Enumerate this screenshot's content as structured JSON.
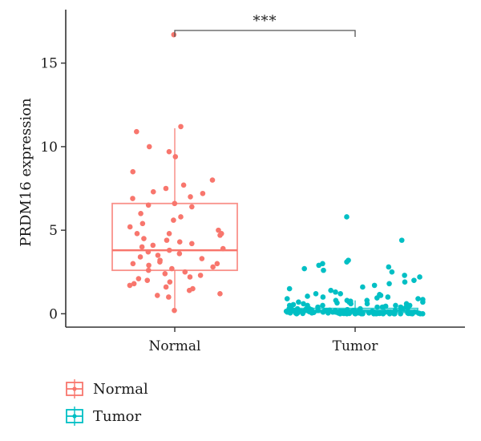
{
  "chart_data": {
    "type": "box",
    "ylabel": "PRDM16 expression",
    "xlabel": "",
    "categories": [
      "Normal",
      "Tumor"
    ],
    "ylim": [
      -0.8,
      18.2
    ],
    "yticks": [
      0,
      5,
      10,
      15
    ],
    "ytick_labels": [
      "0",
      "5",
      "10",
      "15"
    ],
    "significance": {
      "groups": [
        "Normal",
        "Tumor"
      ],
      "label": "***"
    },
    "legend": {
      "placement": "bottom-left",
      "entries": [
        {
          "label": "Normal",
          "color": "#f8766d"
        },
        {
          "label": "Tumor",
          "color": "#00bfc4"
        }
      ]
    },
    "series": [
      {
        "name": "Normal",
        "color": "#f8766d",
        "box": {
          "q1": 2.6,
          "median": 3.8,
          "q3": 6.6,
          "whisker_low": 0.2,
          "whisker_high": 11.1
        },
        "points": [
          16.7,
          11.2,
          10.9,
          10.0,
          9.7,
          9.4,
          8.5,
          8.0,
          7.7,
          7.5,
          7.3,
          7.2,
          7.0,
          6.9,
          6.6,
          6.5,
          6.4,
          6.0,
          5.8,
          5.6,
          5.4,
          5.2,
          5.0,
          4.8,
          4.8,
          4.8,
          4.7,
          4.5,
          4.4,
          4.3,
          4.2,
          4.1,
          4.0,
          3.9,
          3.8,
          3.7,
          3.6,
          3.5,
          3.4,
          3.3,
          3.2,
          3.1,
          3.0,
          3.0,
          2.9,
          2.8,
          2.7,
          2.6,
          2.5,
          2.4,
          2.3,
          2.2,
          2.1,
          2.0,
          1.9,
          1.8,
          1.7,
          1.6,
          1.5,
          1.4,
          1.2,
          1.1,
          1.0,
          0.2
        ]
      },
      {
        "name": "Tumor",
        "color": "#00bfc4",
        "box": {
          "q1": 0.08,
          "median": 0.18,
          "q3": 0.32,
          "whisker_low": 0.0,
          "whisker_high": 0.8
        },
        "points": [
          5.8,
          4.4,
          3.2,
          3.1,
          3.0,
          2.9,
          2.8,
          2.7,
          2.6,
          2.5,
          2.3,
          2.2,
          2.0,
          1.9,
          1.8,
          1.7,
          1.6,
          1.5,
          1.4,
          1.3,
          1.2,
          1.2,
          1.1,
          1.0,
          1.0,
          0.9,
          0.9,
          0.8,
          0.8,
          0.8,
          0.7,
          0.7,
          0.7,
          0.6,
          0.6,
          0.6,
          0.6,
          0.5,
          0.5,
          0.5,
          0.5,
          0.5,
          0.4,
          0.4,
          0.4,
          0.4,
          0.4,
          0.4,
          0.3,
          0.3,
          0.3,
          0.3,
          0.3,
          0.3,
          0.3,
          0.3,
          0.2,
          0.2,
          0.2,
          0.2,
          0.2,
          0.2,
          0.2,
          0.2,
          0.2,
          0.2,
          0.15,
          0.15,
          0.15,
          0.15,
          0.15,
          0.15,
          0.15,
          0.15,
          0.1,
          0.1,
          0.1,
          0.1,
          0.1,
          0.1,
          0.1,
          0.1,
          0.1,
          0.1,
          0.1,
          0.05,
          0.05,
          0.05,
          0.05,
          0.05,
          0.05,
          0.05,
          0.05,
          0.05,
          0.05,
          0.05,
          0.05,
          0.02,
          0.02,
          0.02,
          0.02,
          0.02,
          0.02,
          0.02,
          0.02,
          0.02,
          0.02,
          0.02,
          0.02,
          0.0,
          0.0,
          0.0,
          0.0,
          0.0,
          0.0,
          0.0,
          0.0,
          0.0,
          0.0,
          0.0,
          0.0,
          0.0,
          0.0,
          0.0,
          0.0,
          0.25,
          0.35,
          0.45,
          0.55,
          0.65,
          0.75,
          0.85,
          0.95,
          1.05,
          1.15,
          0.12,
          0.08,
          0.18,
          0.22,
          0.28,
          0.04,
          0.06,
          0.14,
          0.16,
          0.24
        ]
      }
    ]
  }
}
